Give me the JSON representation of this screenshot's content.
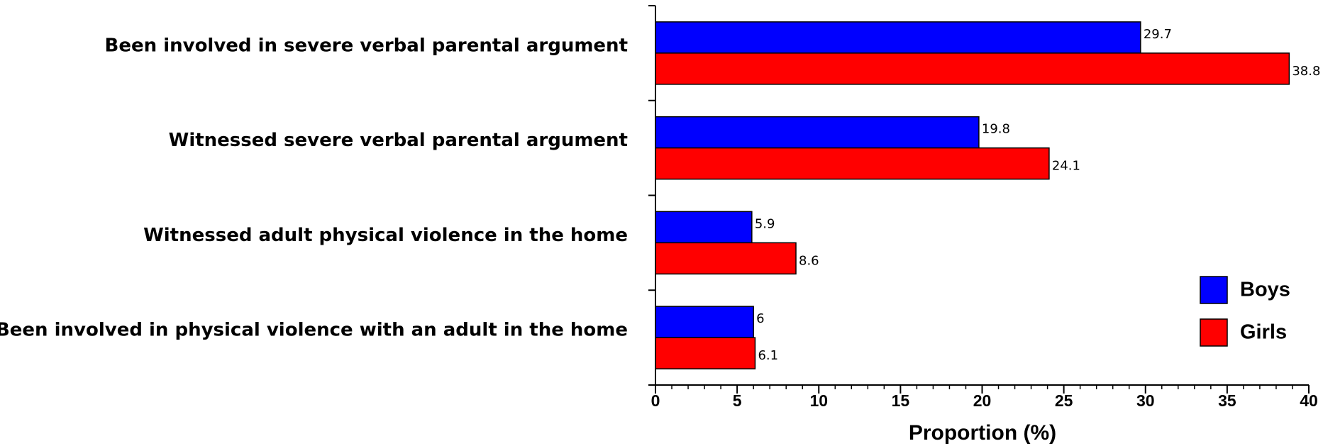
{
  "chart_data": {
    "type": "bar",
    "orientation": "horizontal",
    "categories": [
      "Been involved in severe verbal parental argument",
      "Witnessed severe verbal parental argument",
      "Witnessed adult physical violence in the home",
      "Been involved in physical violence with an adult in the home"
    ],
    "series": [
      {
        "name": "Boys",
        "color": "#0000ff",
        "values": [
          29.7,
          19.8,
          5.9,
          6
        ]
      },
      {
        "name": "Girls",
        "color": "#ff0000",
        "values": [
          38.8,
          24.1,
          8.6,
          6.1
        ]
      }
    ],
    "xlabel": "Proportion (%)",
    "xlim": [
      0,
      40
    ],
    "xticks": [
      0,
      5,
      10,
      15,
      20,
      25,
      30,
      35,
      40
    ],
    "legend": "lower right"
  }
}
